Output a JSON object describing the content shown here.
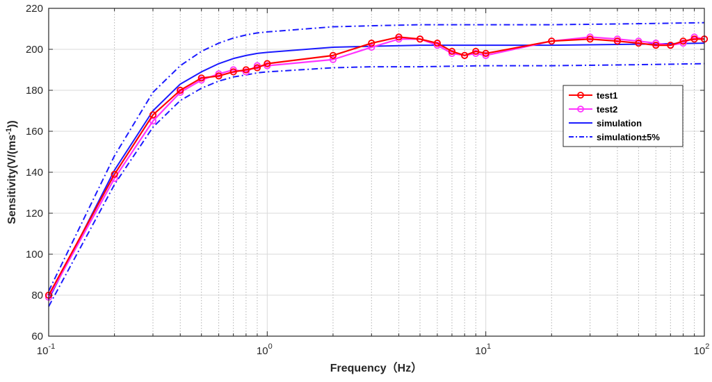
{
  "chart_data": {
    "type": "line",
    "xlabel": "Frequency（Hz）",
    "ylabel": "Sensitivity(V/(ms⁻¹))",
    "xscale": "log",
    "xlim": [
      0.1,
      100
    ],
    "ylim": [
      60,
      220
    ],
    "yticks": [
      "60",
      "80",
      "100",
      "120",
      "140",
      "160",
      "180",
      "200",
      "220"
    ],
    "xticks": [
      {
        "base": "10",
        "exp": "-1"
      },
      {
        "base": "10",
        "exp": "0"
      },
      {
        "base": "10",
        "exp": "1"
      },
      {
        "base": "10",
        "exp": "2"
      }
    ],
    "grid": true,
    "legend_position": "right",
    "series": [
      {
        "name": "test1",
        "color": "#ff0000",
        "style": "solid-marker",
        "x": [
          0.1,
          0.2,
          0.3,
          0.4,
          0.5,
          0.6,
          0.7,
          0.8,
          0.9,
          1,
          2,
          3,
          4,
          5,
          6,
          7,
          8,
          9,
          10,
          20,
          30,
          40,
          50,
          60,
          70,
          80,
          90,
          100
        ],
        "y": [
          80,
          139,
          168,
          180,
          186,
          187,
          189,
          190,
          191,
          193,
          197,
          203,
          206,
          205,
          203,
          199,
          197,
          199,
          198,
          204,
          205,
          204,
          203,
          202,
          202,
          204,
          205,
          205
        ]
      },
      {
        "name": "test2",
        "color": "#ff33ff",
        "style": "solid-marker",
        "x": [
          0.1,
          0.2,
          0.3,
          0.4,
          0.5,
          0.6,
          0.7,
          0.8,
          0.9,
          1,
          2,
          3,
          4,
          5,
          6,
          7,
          8,
          9,
          10,
          20,
          30,
          40,
          50,
          60,
          70,
          80,
          90,
          100
        ],
        "y": [
          79,
          137,
          165,
          179,
          185,
          188,
          190,
          189,
          192,
          192,
          195,
          201,
          205,
          205,
          202,
          198,
          197,
          198,
          197,
          204,
          206,
          205,
          204,
          203,
          202,
          203,
          206,
          205
        ]
      },
      {
        "name": "simulation",
        "color": "#1a1aff",
        "style": "solid",
        "x": [
          0.1,
          0.2,
          0.3,
          0.4,
          0.5,
          0.6,
          0.7,
          0.8,
          0.9,
          1,
          2,
          3,
          5,
          10,
          20,
          50,
          100
        ],
        "y": [
          78,
          141,
          170,
          183,
          189,
          193,
          195.5,
          197,
          198,
          198.5,
          201,
          201.5,
          202,
          202,
          202,
          202.5,
          203
        ]
      },
      {
        "name": "simulation±5%",
        "color": "#1a1aff",
        "style": "dashdot",
        "x": [
          0.1,
          0.2,
          0.3,
          0.4,
          0.5,
          0.6,
          0.7,
          0.8,
          0.9,
          1,
          2,
          3,
          5,
          10,
          20,
          50,
          100
        ],
        "y": [
          82,
          148,
          179,
          192,
          199,
          203,
          205.5,
          207,
          208,
          208.5,
          211,
          211.5,
          212,
          212,
          212,
          212.5,
          213
        ]
      },
      {
        "name": "",
        "color": "#1a1aff",
        "style": "dashdot",
        "x": [
          0.1,
          0.2,
          0.3,
          0.4,
          0.5,
          0.6,
          0.7,
          0.8,
          0.9,
          1,
          2,
          3,
          5,
          10,
          20,
          50,
          100
        ],
        "y": [
          74.5,
          134,
          162,
          175,
          181,
          184.5,
          186.5,
          187.5,
          188.5,
          189,
          191,
          191.5,
          191.5,
          192,
          192,
          192.5,
          193
        ]
      }
    ]
  }
}
